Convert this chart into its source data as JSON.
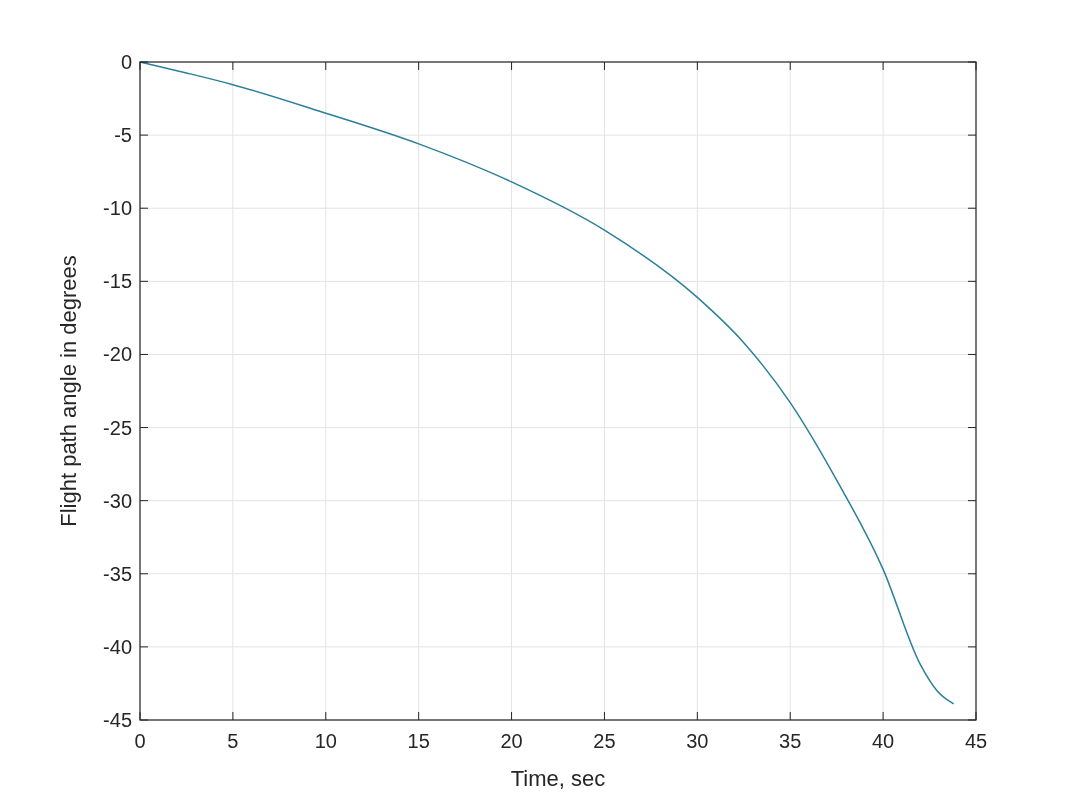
{
  "chart_data": {
    "type": "line",
    "xlabel": "Time, sec",
    "ylabel": "Flight path angle in degrees",
    "x": [
      0,
      2.5,
      5,
      10,
      15,
      20,
      25,
      30,
      32.5,
      35,
      37.5,
      40,
      42,
      42.9,
      43.8
    ],
    "series": [
      {
        "color": "#2a7f9a",
        "values": [
          0,
          -0.75,
          -1.55,
          -3.5,
          -5.6,
          -8.2,
          -11.5,
          -16.1,
          -19.2,
          -23.3,
          -28.6,
          -34.7,
          -41.2,
          -43.0,
          -43.9
        ]
      }
    ],
    "xlim": [
      0,
      45
    ],
    "xticks": [
      0,
      5,
      10,
      15,
      20,
      25,
      30,
      35,
      40,
      45
    ],
    "ylim": [
      -45,
      0
    ],
    "yticks": [
      -45,
      -40,
      -35,
      -30,
      -25,
      -20,
      -15,
      -10,
      -5,
      0
    ],
    "grid": true,
    "marker": "none",
    "line_style": "solid"
  }
}
